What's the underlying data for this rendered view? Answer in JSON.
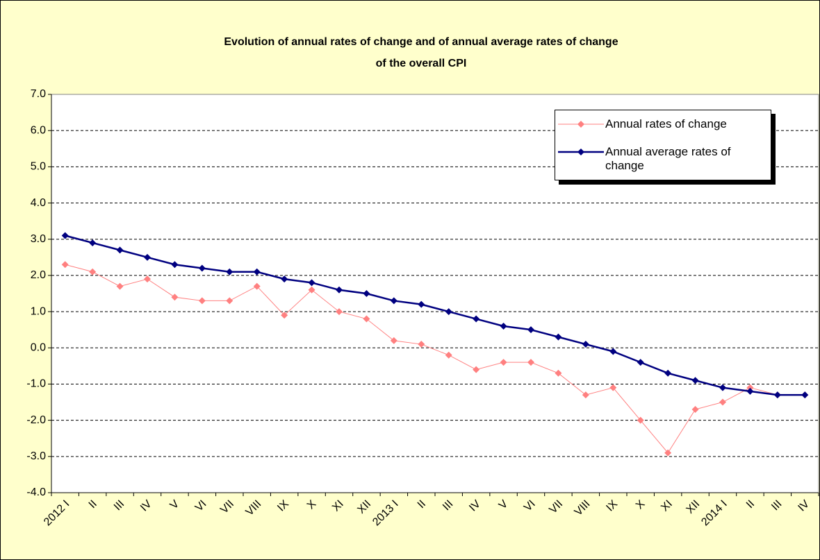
{
  "chart_data": {
    "type": "line",
    "title": [
      "Evolution of annual rates of change and of annual average rates of change",
      "of  the overall CPI"
    ],
    "categories": [
      "2012 I",
      "II",
      "III",
      "IV",
      "V",
      "VI",
      "VII",
      "VIII",
      "IX",
      "X",
      "XI",
      "XII",
      "2013 I",
      "II",
      "III",
      "IV",
      "V",
      "VI",
      "VII",
      "VIII",
      "IX",
      "X",
      "XI",
      "XII",
      "2014 I",
      "II",
      "III",
      "IV"
    ],
    "series": [
      {
        "name": "Annual rates of change",
        "color": "#ff8080",
        "values": [
          2.3,
          2.1,
          1.7,
          1.9,
          1.4,
          1.3,
          1.3,
          1.7,
          0.9,
          1.6,
          1.0,
          0.8,
          0.2,
          0.1,
          -0.2,
          -0.6,
          -0.4,
          -0.4,
          -0.7,
          -1.3,
          -1.1,
          -2.0,
          -2.9,
          -1.7,
          -1.5,
          -1.1,
          -1.3,
          -1.3
        ]
      },
      {
        "name": "Annual average rates of change",
        "color": "#000080",
        "values": [
          3.1,
          2.9,
          2.7,
          2.5,
          2.3,
          2.2,
          2.1,
          2.1,
          1.9,
          1.8,
          1.6,
          1.5,
          1.3,
          1.2,
          1.0,
          0.8,
          0.6,
          0.5,
          0.3,
          0.1,
          -0.1,
          -0.4,
          -0.7,
          -0.9,
          -1.1,
          -1.2,
          -1.3,
          -1.3
        ]
      }
    ],
    "ylim": [
      -4,
      7
    ],
    "yticks": [
      {
        "value": 7,
        "label": "7.0"
      },
      {
        "value": 6,
        "label": "6.0"
      },
      {
        "value": 5,
        "label": "5.0"
      },
      {
        "value": 4,
        "label": "4.0"
      },
      {
        "value": 3,
        "label": "3.0"
      },
      {
        "value": 2,
        "label": "2.0"
      },
      {
        "value": 1,
        "label": "1.0"
      },
      {
        "value": 0,
        "label": "0.0"
      },
      {
        "value": -1,
        "label": "-1.0"
      },
      {
        "value": -2,
        "label": "-2.0"
      },
      {
        "value": -3,
        "label": "-3.0"
      },
      {
        "value": -4,
        "label": "-4.0"
      }
    ],
    "grid": true,
    "legend": "top-right"
  }
}
